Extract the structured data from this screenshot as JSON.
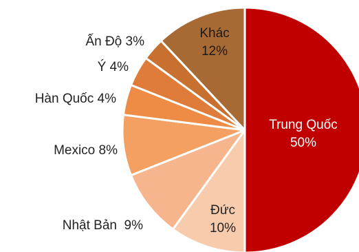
{
  "chart_data": {
    "type": "pie",
    "slices": [
      {
        "label": "Trung Quốc",
        "value": 50,
        "value_label": "50%",
        "color": "#c00000",
        "text_color": "#ffffff"
      },
      {
        "label": "Đức",
        "value": 10,
        "value_label": "10%",
        "color": "#f9cbad",
        "text_color": "#222222"
      },
      {
        "label": "Nhật Bản",
        "value": 9,
        "value_label": "9%",
        "color": "#f6b58c",
        "text_color": "#222222"
      },
      {
        "label": "Mexico",
        "value": 8,
        "value_label": "8%",
        "color": "#f4a063",
        "text_color": "#222222"
      },
      {
        "label": "Hàn Quốc",
        "value": 4,
        "value_label": "4%",
        "color": "#ee8c45",
        "text_color": "#222222"
      },
      {
        "label": "Ý",
        "value": 4,
        "value_label": "4%",
        "color": "#e07c3a",
        "text_color": "#222222"
      },
      {
        "label": "Ấn Độ",
        "value": 3,
        "value_label": "3%",
        "color": "#c8702f",
        "text_color": "#222222"
      },
      {
        "label": "Khác",
        "value": 12,
        "value_label": "12%",
        "color": "#a86a35",
        "text_color": "#1a1a1a"
      }
    ],
    "start": "12 o'clock",
    "direction": "clockwise",
    "legend": "none"
  }
}
